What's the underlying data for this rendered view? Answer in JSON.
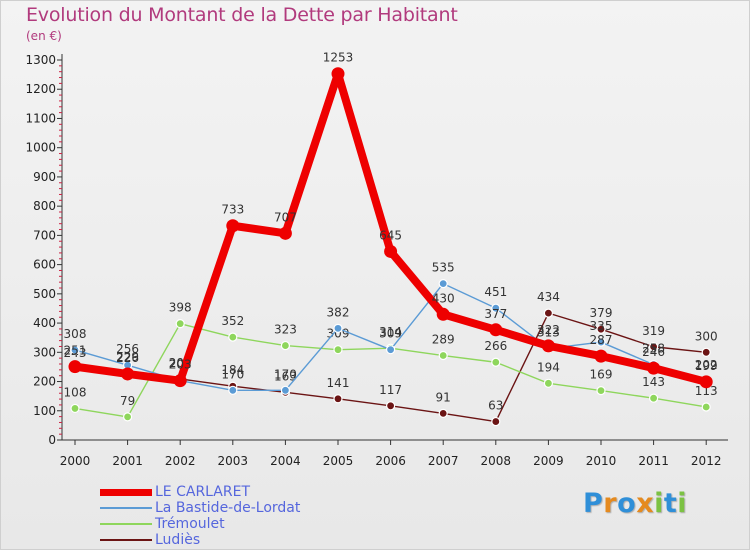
{
  "header": {
    "title": "Evolution du Montant de la Dette par Habitant",
    "subtitle": "(en €)"
  },
  "colors": {
    "title": "#b13a7d",
    "legend_text": "#5566dd"
  },
  "logo": {
    "letters": [
      "P",
      "r",
      "o",
      "x",
      "i",
      "t",
      "i"
    ],
    "colors": [
      "#2f8fd8",
      "#e58a1f",
      "#2f8fd8",
      "#e58a1f",
      "#7cc243",
      "#2f8fd8",
      "#7cc243"
    ]
  },
  "chart_data": {
    "type": "line",
    "title": "Evolution du Montant de la Dette par Habitant",
    "ylabel": "(en €)",
    "xlabel": "",
    "ylim": [
      0,
      1300
    ],
    "yticks": [
      0,
      100,
      200,
      300,
      400,
      500,
      600,
      700,
      800,
      900,
      1000,
      1100,
      1200,
      1300
    ],
    "categories": [
      "2000",
      "2001",
      "2002",
      "2003",
      "2004",
      "2005",
      "2006",
      "2007",
      "2008",
      "2009",
      "2010",
      "2011",
      "2012"
    ],
    "grid": false,
    "legend_position": "bottom-left",
    "series": [
      {
        "name": "Ludiès",
        "color": "#6b1414",
        "values": [
          243,
          229,
          209,
          184,
          163,
          141,
          117,
          91,
          63,
          434,
          379,
          319,
          300
        ],
        "labels": [
          "243",
          "229",
          "209",
          "184",
          "163",
          "141",
          "117",
          "91",
          "63",
          "434",
          "379",
          "319",
          "300"
        ]
      },
      {
        "name": "Trémoulet",
        "color": "#8ed65c",
        "values": [
          108,
          79,
          398,
          352,
          323,
          309,
          314,
          289,
          266,
          194,
          169,
          143,
          113
        ],
        "labels": [
          "108",
          "79",
          "398",
          "352",
          "323",
          "309",
          "314",
          "289",
          "266",
          "194",
          "169",
          "143",
          "113"
        ]
      },
      {
        "name": "La Bastide-de-Lordat",
        "color": "#5b9bd5",
        "values": [
          308,
          256,
          203,
          170,
          170,
          382,
          309,
          535,
          451,
          313,
          335,
          258,
          202
        ],
        "labels": [
          "308",
          "256",
          "203",
          "170",
          "170",
          "382",
          "309",
          "535",
          "451",
          "313",
          "335",
          "258",
          "202"
        ]
      },
      {
        "name": "LE CARLARET",
        "color": "#ee0000",
        "values": [
          251,
          226,
          203,
          733,
          707,
          1253,
          645,
          430,
          377,
          322,
          287,
          246,
          199
        ],
        "labels": [
          "251",
          "226",
          "203",
          "733",
          "707",
          "1253",
          "645",
          "430",
          "377",
          "322",
          "287",
          "246",
          "199"
        ]
      }
    ],
    "legend_order": [
      "LE CARLARET",
      "La Bastide-de-Lordat",
      "Trémoulet",
      "Ludiès"
    ]
  }
}
